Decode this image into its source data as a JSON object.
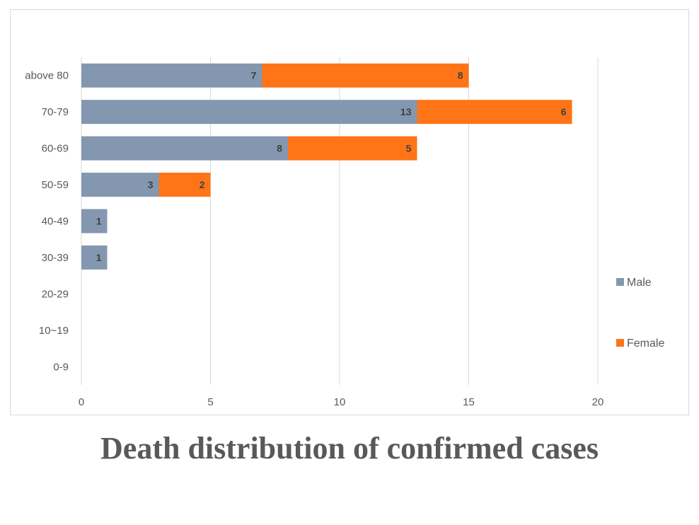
{
  "caption": "Death distribution of confirmed cases",
  "colors": {
    "male": "#8497b0",
    "female": "#ff7416",
    "grid": "#d9d9d9",
    "text": "#595959"
  },
  "chart_data": {
    "type": "bar",
    "orientation": "horizontal",
    "stacked": true,
    "categories": [
      "above 80",
      "70-79",
      "60-69",
      "50-59",
      "40-49",
      "30-39",
      "20-29",
      "10~19",
      "0-9"
    ],
    "series": [
      {
        "name": "Male",
        "values": [
          7,
          13,
          8,
          3,
          1,
          1,
          0,
          0,
          0
        ]
      },
      {
        "name": "Female",
        "values": [
          8,
          6,
          5,
          2,
          0,
          0,
          0,
          0,
          0
        ]
      }
    ],
    "xlim": [
      0,
      20
    ],
    "x_ticks": [
      0,
      5,
      10,
      15,
      20
    ],
    "grid": true,
    "legend": "right",
    "title": "",
    "xlabel": "",
    "ylabel": ""
  }
}
